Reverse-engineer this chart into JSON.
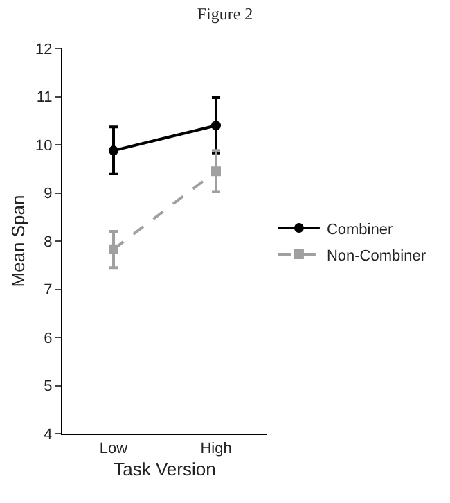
{
  "chart_data": {
    "type": "line",
    "title": "Figure 2",
    "xlabel": "Task Version",
    "ylabel": "Mean Span",
    "categories": [
      "Low",
      "High"
    ],
    "series": [
      {
        "name": "Combiner",
        "color": "#000000",
        "values": [
          9.88,
          10.4
        ],
        "errors": [
          [
            9.4,
            10.37
          ],
          [
            9.83,
            10.98
          ]
        ],
        "marker": "circle",
        "line_style": "solid"
      },
      {
        "name": "Non-Combiner",
        "color": "#a0a0a0",
        "values": [
          7.83,
          9.45
        ],
        "errors": [
          [
            7.45,
            8.2
          ],
          [
            9.03,
            9.88
          ]
        ],
        "marker": "square",
        "line_style": "dashed"
      }
    ],
    "ylim": [
      4,
      12
    ],
    "yticks": [
      4,
      5,
      6,
      7,
      8,
      9,
      10,
      11,
      12
    ],
    "legend": "right"
  }
}
